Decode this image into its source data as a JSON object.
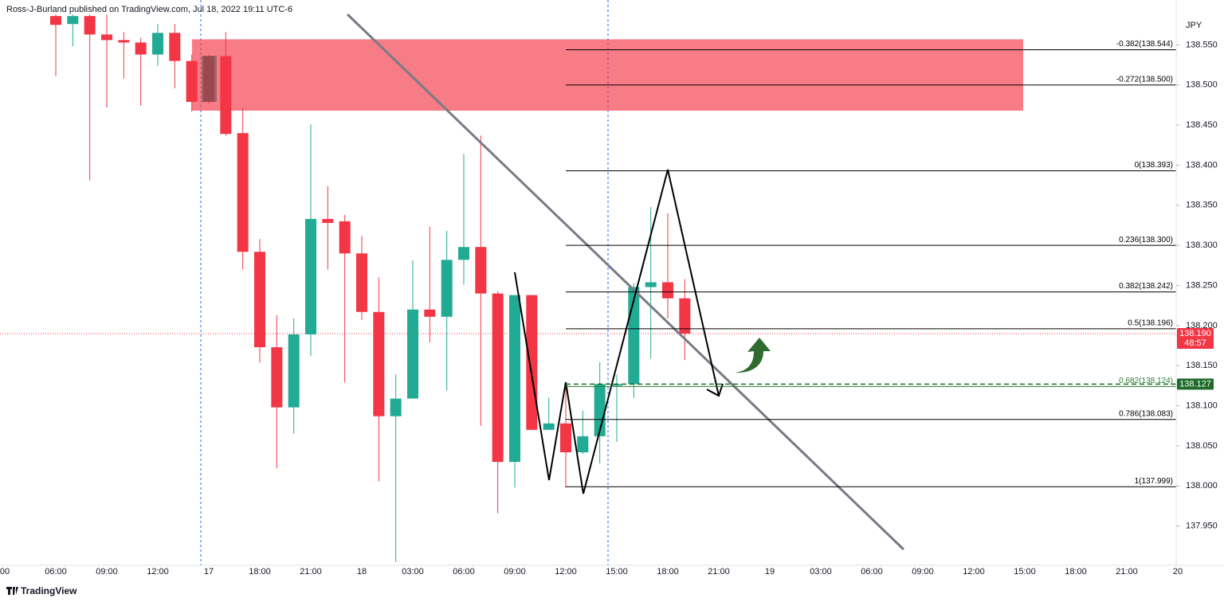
{
  "chart_data": {
    "type": "candlestick",
    "header": "Ross-J-Burland published on TradingView.com, Jul 18, 2022 19:11 UTC-6",
    "y_axis_label": "JPY",
    "footer": "TradingView",
    "up_color": "#22ab94",
    "down_color": "#f23645",
    "categories": [
      "00",
      null,
      null,
      "06:00",
      null,
      null,
      "09:00",
      null,
      null,
      "12:00",
      null,
      null,
      "17",
      null,
      null,
      "18:00",
      null,
      null,
      "21:00",
      null,
      null,
      "18",
      null,
      null,
      "03:00",
      null,
      null,
      "06:00",
      null,
      null,
      "09:00",
      null,
      null,
      "12:00",
      null,
      null,
      "15:00",
      null,
      null,
      "18:00",
      null,
      null,
      "21:00",
      null,
      null,
      "19",
      null,
      null,
      "03:00",
      null,
      null,
      "06:00",
      null,
      null,
      "09:00",
      null,
      null,
      "12:00",
      null,
      null,
      "15:00",
      null,
      null,
      "18:00",
      null,
      null,
      "21:00",
      null,
      null,
      "20"
    ],
    "open": [
      null,
      null,
      null,
      138.586,
      138.576,
      138.586,
      138.563,
      138.556,
      138.553,
      138.538,
      138.565,
      138.53,
      138.536,
      138.536,
      138.44,
      138.292,
      138.173,
      138.098,
      138.189,
      138.333,
      138.33,
      138.29,
      138.217,
      138.087,
      138.109,
      138.22,
      138.211,
      138.282,
      138.298,
      138.24,
      138.03,
      138.238,
      138.07,
      138.078,
      138.042,
      138.062,
      138.125,
      138.127,
      138.248,
      138.254,
      138.234,
      null,
      null,
      null,
      null,
      null,
      null,
      null,
      null,
      null,
      null,
      null,
      null,
      null,
      null,
      null,
      null,
      null,
      null,
      null,
      null,
      null,
      null,
      null,
      null,
      null,
      null,
      null,
      null,
      null
    ],
    "high": [
      null,
      null,
      null,
      138.588,
      138.588,
      138.588,
      138.588,
      138.566,
      138.559,
      138.576,
      138.576,
      138.538,
      138.538,
      138.566,
      138.472,
      138.308,
      138.213,
      138.209,
      138.451,
      138.374,
      138.338,
      138.312,
      138.26,
      138.139,
      138.281,
      138.323,
      138.318,
      138.414,
      138.437,
      138.243,
      138.238,
      138.238,
      138.11,
      138.129,
      138.094,
      138.154,
      138.139,
      138.253,
      138.348,
      138.34,
      138.258,
      null,
      null,
      null,
      null,
      null,
      null,
      null,
      null,
      null,
      null,
      null,
      null,
      null,
      null,
      null,
      null,
      null,
      null,
      null,
      null,
      null,
      null,
      null,
      null,
      null,
      null,
      null,
      null,
      null
    ],
    "low": [
      null,
      null,
      null,
      138.511,
      138.548,
      138.381,
      138.472,
      138.508,
      138.474,
      138.524,
      138.496,
      138.467,
      138.477,
      138.437,
      138.27,
      138.154,
      138.022,
      138.065,
      138.162,
      138.27,
      138.129,
      138.207,
      138.006,
      137.905,
      138.109,
      138.179,
      138.119,
      138.251,
      138.075,
      137.966,
      137.998,
      138.07,
      138.07,
      137.998,
      138.04,
      138.028,
      138.055,
      138.11,
      138.159,
      138.209,
      138.157,
      null,
      null,
      null,
      null,
      null,
      null,
      null,
      null,
      null,
      null,
      null,
      null,
      null,
      null,
      null,
      null,
      null,
      null,
      null,
      null,
      null,
      null,
      null,
      null,
      null,
      null,
      null,
      null,
      null
    ],
    "close": [
      null,
      null,
      null,
      138.575,
      138.586,
      138.563,
      138.556,
      138.553,
      138.538,
      138.565,
      138.53,
      138.479,
      138.479,
      138.439,
      138.292,
      138.173,
      138.098,
      138.189,
      138.333,
      138.328,
      138.29,
      138.217,
      138.087,
      138.109,
      138.22,
      138.211,
      138.282,
      138.298,
      138.24,
      138.03,
      138.238,
      138.07,
      138.078,
      138.042,
      138.062,
      138.127,
      138.127,
      138.248,
      138.254,
      138.234,
      138.19,
      null,
      null,
      null,
      null,
      null,
      null,
      null,
      null,
      null,
      null,
      null,
      null,
      null,
      null,
      null,
      null,
      null,
      null,
      null,
      null,
      null,
      null,
      null,
      null,
      null,
      null,
      null,
      null,
      null
    ],
    "ylim": [
      137.901,
      138.606
    ],
    "yticks": [
      {
        "value": 137.95,
        "label": "137.950"
      },
      {
        "value": 138.0,
        "label": "138.000"
      },
      {
        "value": 138.05,
        "label": "138.050"
      },
      {
        "value": 138.1,
        "label": "138.100"
      },
      {
        "value": 138.15,
        "label": "138.150"
      },
      {
        "value": 138.2,
        "label": "138.200"
      },
      {
        "value": 138.25,
        "label": "138.250"
      },
      {
        "value": 138.3,
        "label": "138.300"
      },
      {
        "value": 138.35,
        "label": "138.350"
      },
      {
        "value": 138.4,
        "label": "138.400"
      },
      {
        "value": 138.45,
        "label": "138.450"
      },
      {
        "value": 138.5,
        "label": "138.500"
      },
      {
        "value": 138.55,
        "label": "138.550"
      }
    ],
    "grid": false,
    "zone": {
      "top": 138.557,
      "bottom": 138.468,
      "color": "#f23645"
    },
    "fib_levels": [
      {
        "label": "-0.382(138.544)",
        "value": 138.544,
        "color": "#000000"
      },
      {
        "label": "-0.272(138.500)",
        "value": 138.5,
        "color": "#000000"
      },
      {
        "label": "0(138.393)",
        "value": 138.393,
        "color": "#000000"
      },
      {
        "label": "0.236(138.300)",
        "value": 138.3,
        "color": "#000000"
      },
      {
        "label": "0.382(138.242)",
        "value": 138.242,
        "color": "#000000"
      },
      {
        "label": "0.5(138.196)",
        "value": 138.196,
        "color": "#000000"
      },
      {
        "label": "0.682(138.124)",
        "value": 138.124,
        "color": "#2e7d32"
      },
      {
        "label": "0.786(138.083)",
        "value": 138.083,
        "color": "#000000"
      },
      {
        "label": "1(137.999)",
        "value": 137.999,
        "color": "#000000"
      }
    ],
    "last_price": {
      "value": 138.19,
      "label": "138.190",
      "countdown": "48:57",
      "color": "#f23645"
    },
    "level_price": {
      "value": 138.127,
      "label": "138.127",
      "color": "#1e6b2a"
    }
  }
}
